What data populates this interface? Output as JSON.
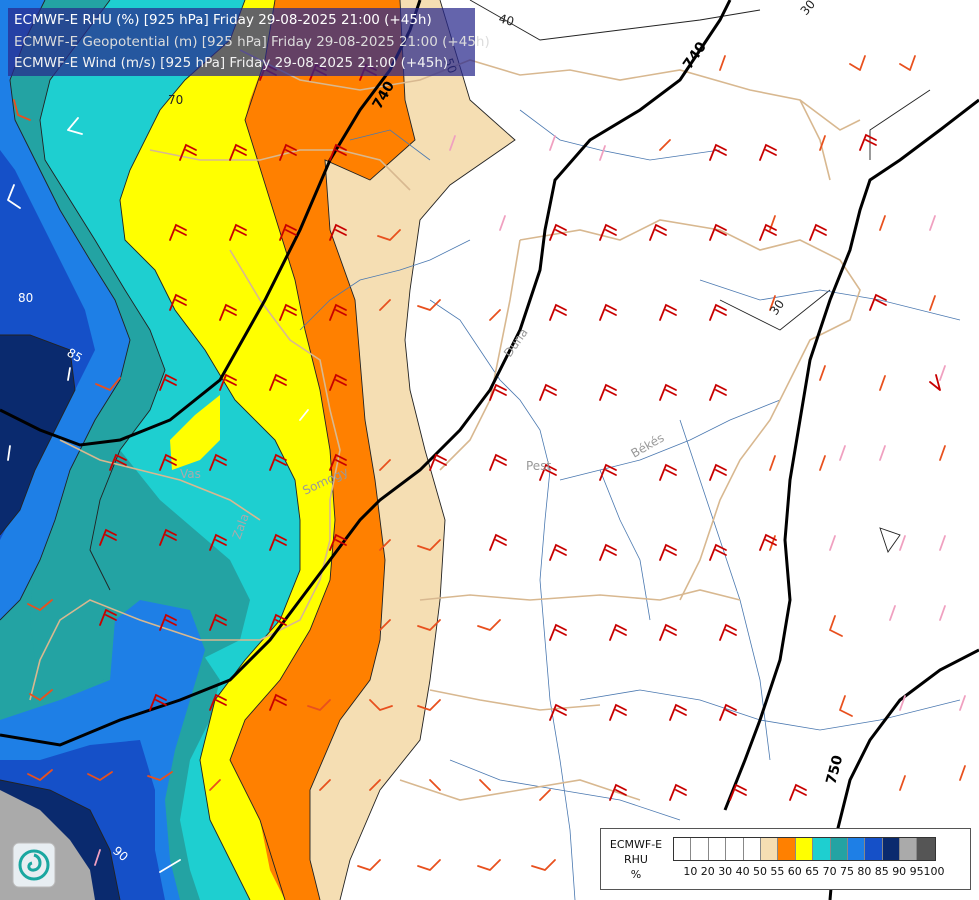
{
  "header": {
    "line1": "ECMWF-E RHU (%) [925 hPa] Friday 29-08-2025 21:00 (+45h)",
    "line2": "ECMWF-E Geopotential (m) [925 hPa] Friday 29-08-2025 21:00 (+45h)",
    "line3": "ECMWF-E Wind (m/s) [925 hPa] Friday 29-08-2025 21:00 (+45h)"
  },
  "legend": {
    "title": [
      "ECMWF-E",
      "RHU",
      "%"
    ],
    "ticks": [
      "10",
      "20",
      "30",
      "40",
      "50",
      "55",
      "60",
      "65",
      "70",
      "75",
      "80",
      "85",
      "90",
      "95",
      "100"
    ],
    "colors": [
      "#ffffff",
      "#ffffff",
      "#ffffff",
      "#ffffff",
      "#ffffff",
      "#f5deb3",
      "#ff8000",
      "#ffff00",
      "#1ecfd0",
      "#23a3a3",
      "#1e7fe6",
      "#1550c8",
      "#0a2a6e",
      "#aaaaaa",
      "#555555"
    ]
  },
  "map_labels": {
    "rh_contours": [
      "40",
      "50",
      "70",
      "80",
      "85",
      "30",
      "90",
      "30"
    ],
    "geopotential": [
      "740",
      "740",
      "750"
    ],
    "places": [
      "Pest",
      "Békés",
      "Somogy",
      "Vas",
      "Zala",
      "Duna"
    ]
  },
  "palette": {
    "rh_50_55": "#f5deb3",
    "rh_55_60": "#ff8000",
    "rh_60_65": "#ffff00",
    "rh_65_70": "#1ecfd0",
    "rh_70_75": "#23a3a3",
    "rh_75_80": "#1e7fe6",
    "rh_80_85": "#1550c8",
    "rh_85_90": "#0a2a6e",
    "rh_90_95": "#aaaaaa",
    "wind_strong": "#c80000",
    "wind_moderate": "#e8501e",
    "wind_light": "#f0a0c0",
    "wind_calm": "#ffffff",
    "rivers": "#4a78b0",
    "borders": "#d8b890"
  }
}
